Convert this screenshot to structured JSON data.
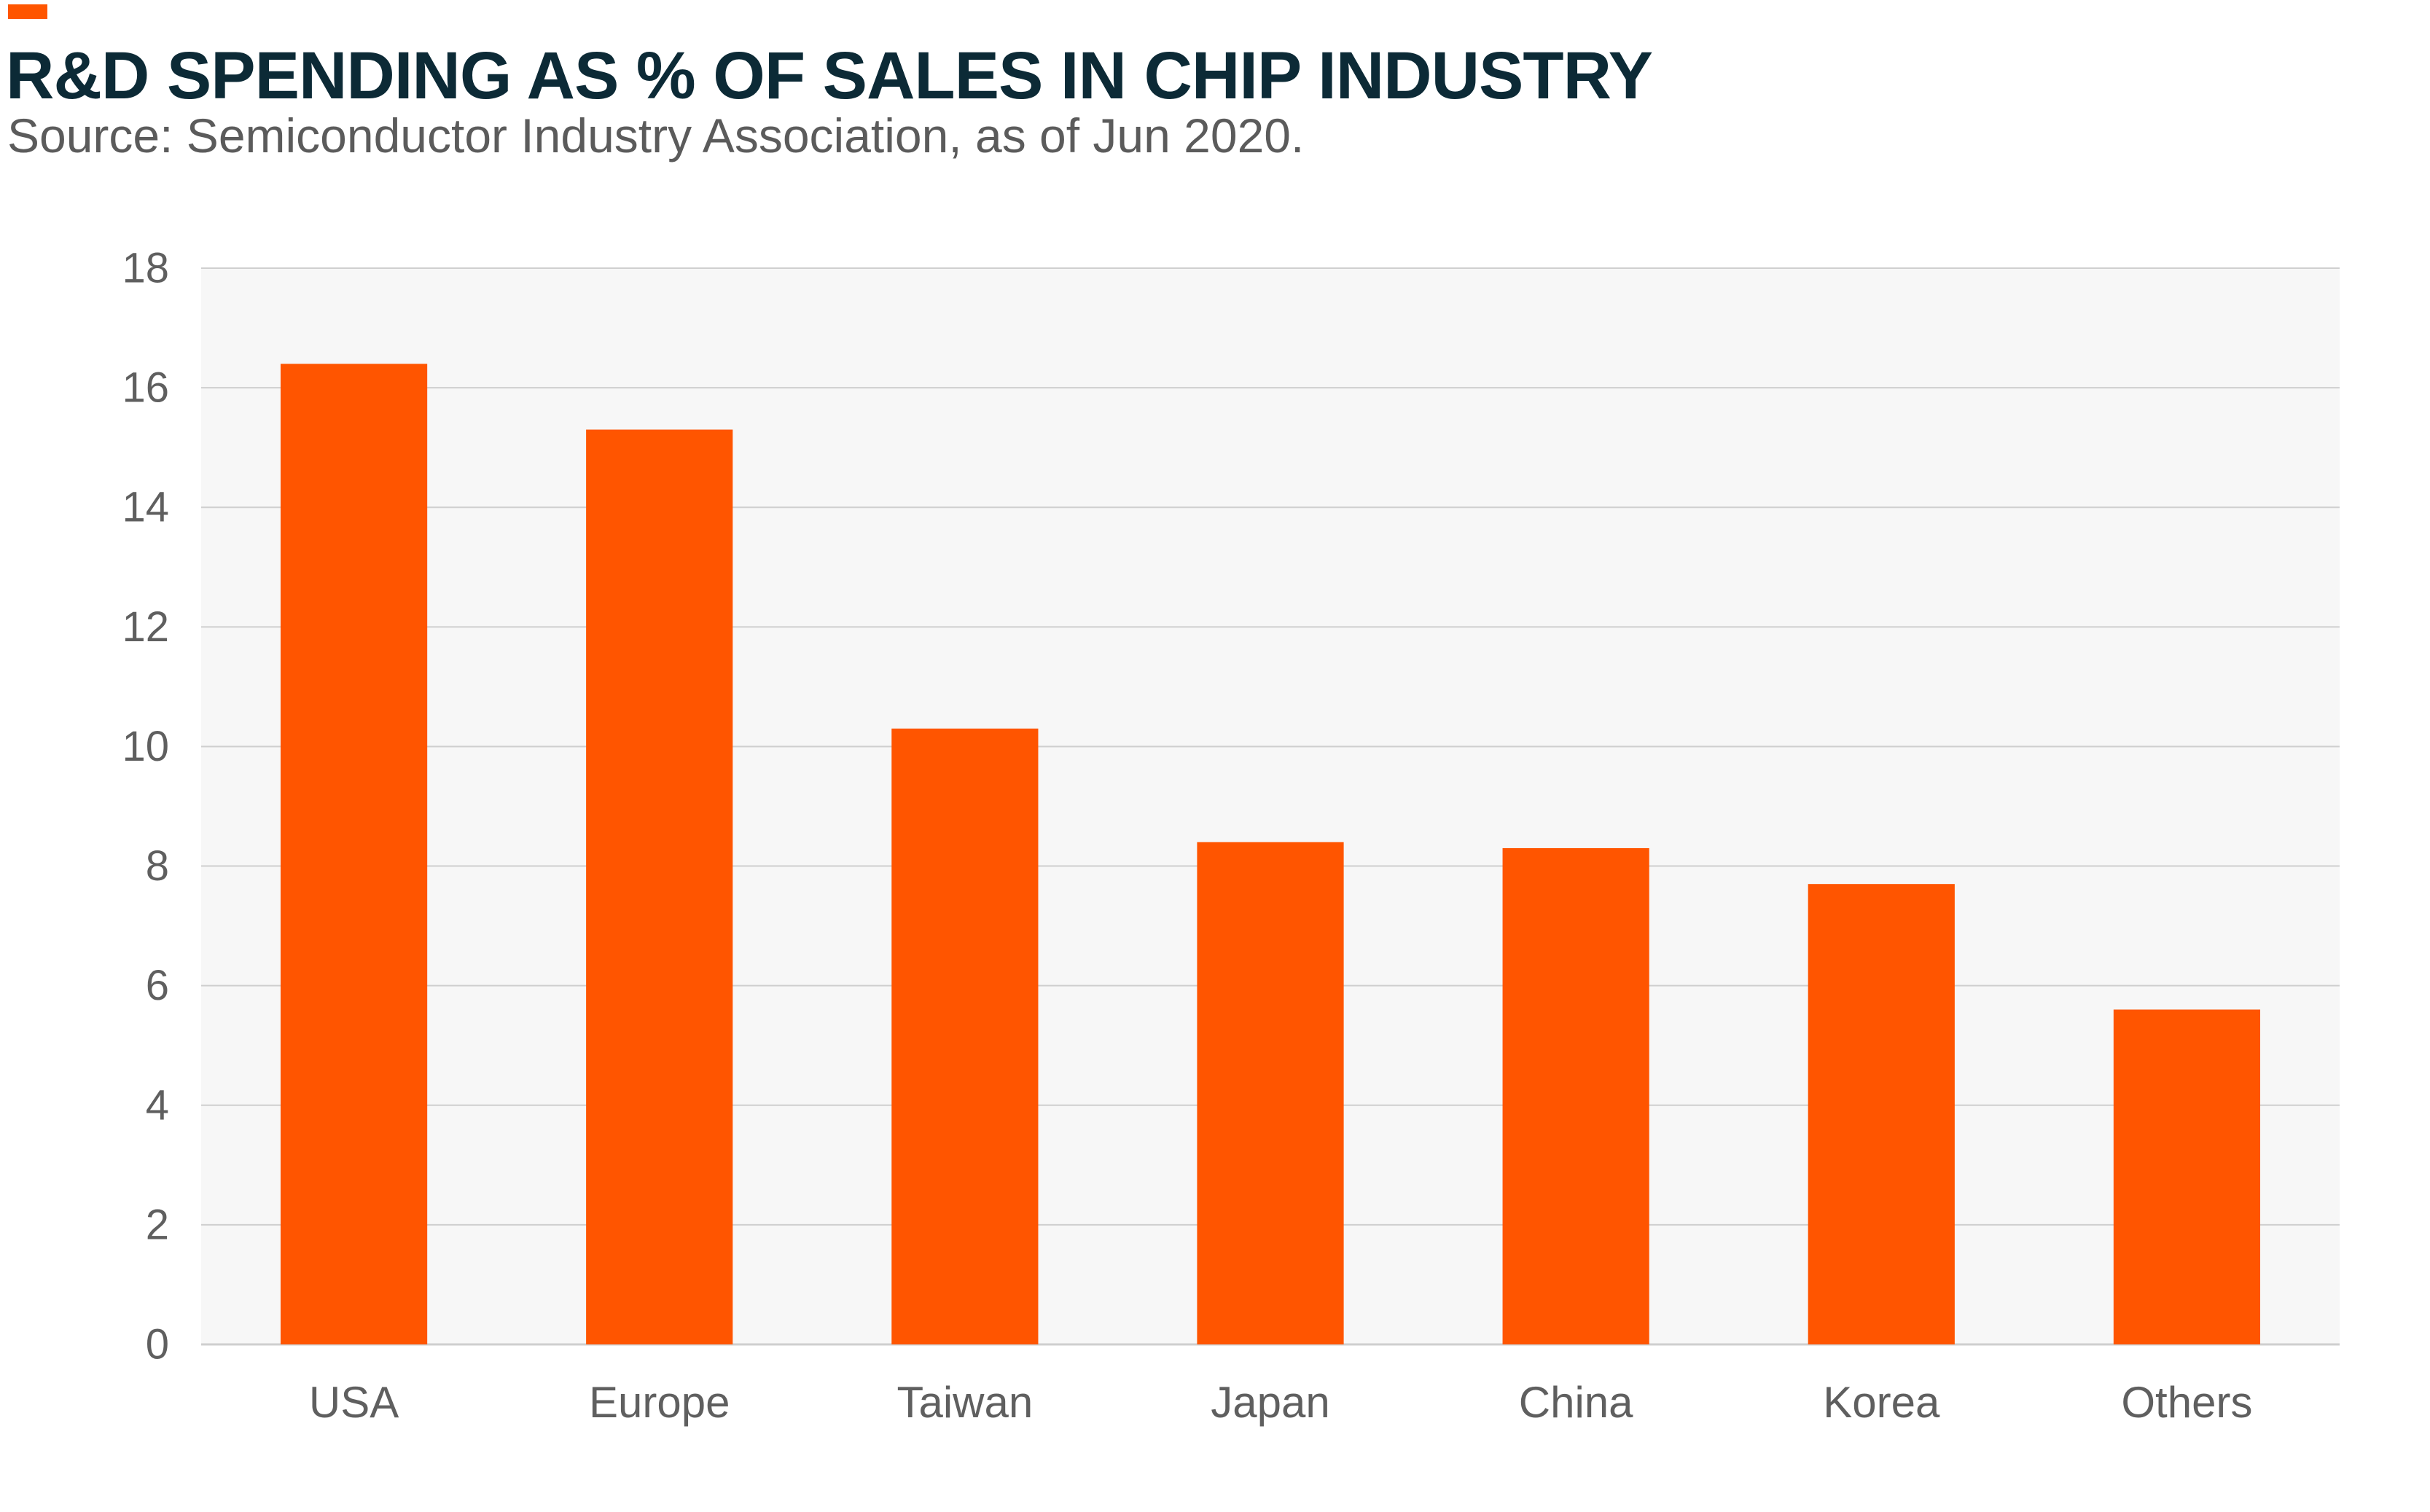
{
  "header": {
    "title": "R&D SPENDING AS % OF SALES IN CHIP INDUSTRY",
    "subtitle": "Source: Semiconductor Industry Association, as of Jun 2020."
  },
  "colors": {
    "accent": "#ff5500",
    "bar": "#ff5500",
    "title": "#0c2a36",
    "plot_background": "#f7f7f7",
    "gridline": "#cfcfcf"
  },
  "chart_data": {
    "type": "bar",
    "title": "R&D SPENDING AS % OF SALES IN CHIP INDUSTRY",
    "subtitle": "Source: Semiconductor Industry Association, as of Jun 2020.",
    "xlabel": "",
    "ylabel": "",
    "categories": [
      "USA",
      "Europe",
      "Taiwan",
      "Japan",
      "China",
      "Korea",
      "Others"
    ],
    "values": [
      16.4,
      15.3,
      10.3,
      8.4,
      8.3,
      7.7,
      5.6
    ],
    "ylim": [
      0,
      18
    ],
    "yticks": [
      0,
      2,
      4,
      6,
      8,
      10,
      12,
      14,
      16,
      18
    ],
    "grid": true,
    "legend": "none"
  }
}
